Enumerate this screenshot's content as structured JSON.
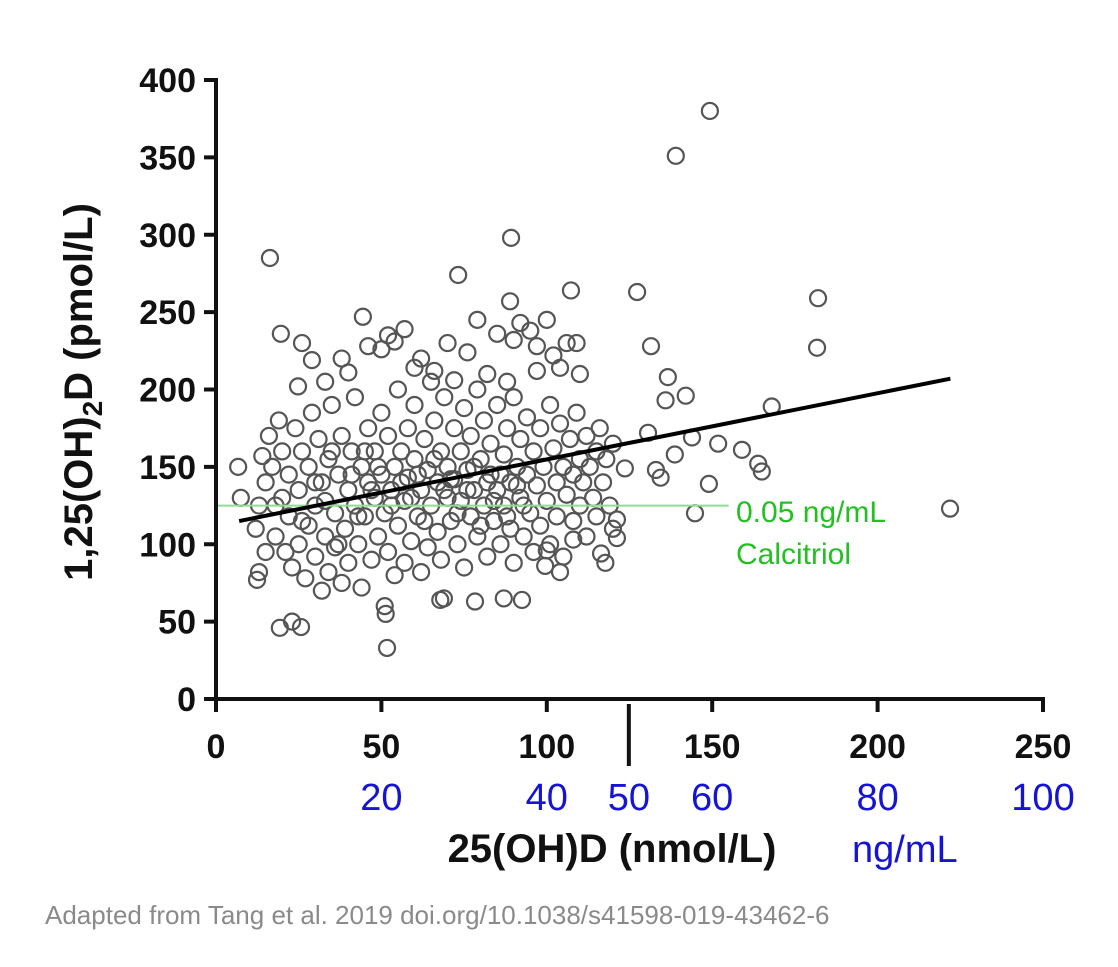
{
  "chart_data": {
    "type": "scatter",
    "title": "",
    "xlabel": "25(OH)D (nmol/L)",
    "ylabel_main": "1,25(OH)",
    "ylabel_sub": "2",
    "ylabel_rest": "D (pmol/L)",
    "xlim": [
      0,
      250
    ],
    "ylim": [
      0,
      400
    ],
    "xticks": [
      0,
      50,
      100,
      150,
      200,
      250
    ],
    "yticks": [
      0,
      50,
      100,
      150,
      200,
      250,
      300,
      350,
      400
    ],
    "grid": false,
    "secondary_x_axis": {
      "unit_label": "ng/mL",
      "ticks": [
        {
          "label": "20",
          "x_nmol": 50
        },
        {
          "label": "40",
          "x_nmol": 100
        },
        {
          "label": "50",
          "x_nmol": 124.8
        },
        {
          "label": "60",
          "x_nmol": 150
        },
        {
          "label": "80",
          "x_nmol": 200
        },
        {
          "label": "100",
          "x_nmol": 250
        }
      ],
      "color": "#1414d2"
    },
    "marker_line_x": 124.8,
    "regression_line": {
      "x": [
        7,
        222
      ],
      "y": [
        115,
        207
      ],
      "color": "#000000"
    },
    "reference_line": {
      "y": 125,
      "x": [
        0,
        155
      ],
      "color": "#90dc90",
      "label_line1": "0.05 ng/mL",
      "label_line2": "Calcitriol",
      "label_color": "#22c022"
    },
    "marker_color": "#555555",
    "points": [
      [
        16.3,
        285
      ],
      [
        19.6,
        236
      ],
      [
        26,
        230
      ],
      [
        44.4,
        247
      ],
      [
        73.2,
        274
      ],
      [
        89.2,
        298
      ],
      [
        88.9,
        257
      ],
      [
        107.3,
        264
      ],
      [
        127.3,
        263
      ],
      [
        139,
        351
      ],
      [
        149.3,
        380
      ],
      [
        182,
        259
      ],
      [
        181.7,
        227
      ],
      [
        221.9,
        123
      ],
      [
        168,
        189
      ],
      [
        159,
        161
      ],
      [
        163.9,
        152
      ],
      [
        165,
        147
      ],
      [
        151.8,
        165
      ],
      [
        149,
        139
      ],
      [
        144.8,
        120
      ],
      [
        142,
        196
      ],
      [
        136.6,
        208
      ],
      [
        131.5,
        228
      ],
      [
        135.9,
        193
      ],
      [
        133,
        148
      ],
      [
        134.4,
        143
      ],
      [
        138.7,
        158
      ],
      [
        143.9,
        169
      ],
      [
        130.6,
        172
      ],
      [
        123.6,
        149
      ],
      [
        121.2,
        116
      ],
      [
        121.2,
        104
      ],
      [
        116.4,
        94
      ],
      [
        117.7,
        88
      ],
      [
        6.7,
        150
      ],
      [
        7.5,
        130
      ],
      [
        12.4,
        77
      ],
      [
        13,
        82
      ],
      [
        19.3,
        46
      ],
      [
        23,
        50
      ],
      [
        25.7,
        46.5
      ],
      [
        51.7,
        33
      ],
      [
        51,
        60
      ],
      [
        51.3,
        55
      ],
      [
        67.8,
        64
      ],
      [
        68.9,
        65
      ],
      [
        78.3,
        63
      ],
      [
        87,
        65
      ],
      [
        92.5,
        64
      ],
      [
        99.5,
        86
      ],
      [
        104,
        82
      ],
      [
        100,
        96
      ],
      [
        108,
        103
      ],
      [
        24.8,
        202
      ],
      [
        29,
        219
      ],
      [
        33,
        205
      ],
      [
        38,
        220
      ],
      [
        40,
        211
      ],
      [
        46,
        228
      ],
      [
        50,
        226
      ],
      [
        52,
        235
      ],
      [
        54,
        231
      ],
      [
        57,
        239
      ],
      [
        60,
        214
      ],
      [
        62,
        220
      ],
      [
        66,
        212
      ],
      [
        70,
        230
      ],
      [
        72,
        206
      ],
      [
        76,
        224
      ],
      [
        79,
        245
      ],
      [
        82,
        210
      ],
      [
        85,
        236
      ],
      [
        90,
        232
      ],
      [
        92,
        243
      ],
      [
        95,
        238
      ],
      [
        97,
        228
      ],
      [
        100,
        245
      ],
      [
        102,
        222
      ],
      [
        104,
        214
      ],
      [
        106,
        230
      ],
      [
        109,
        230
      ],
      [
        110,
        210
      ],
      [
        97,
        212
      ],
      [
        88,
        205
      ],
      [
        14,
        157
      ],
      [
        15,
        140
      ],
      [
        16,
        170
      ],
      [
        18,
        125
      ],
      [
        18,
        105
      ],
      [
        19,
        180
      ],
      [
        20,
        160
      ],
      [
        21,
        95
      ],
      [
        22,
        145
      ],
      [
        22,
        118
      ],
      [
        23,
        85
      ],
      [
        24,
        175
      ],
      [
        25,
        135
      ],
      [
        25,
        100
      ],
      [
        26,
        160
      ],
      [
        27,
        78
      ],
      [
        28,
        150
      ],
      [
        28,
        112
      ],
      [
        29,
        185
      ],
      [
        30,
        125
      ],
      [
        30,
        92
      ],
      [
        31,
        168
      ],
      [
        32,
        140
      ],
      [
        32,
        70
      ],
      [
        33,
        105
      ],
      [
        34,
        155
      ],
      [
        34,
        82
      ],
      [
        35,
        190
      ],
      [
        36,
        120
      ],
      [
        36,
        98
      ],
      [
        37,
        145
      ],
      [
        38,
        170
      ],
      [
        38,
        75
      ],
      [
        39,
        110
      ],
      [
        40,
        135
      ],
      [
        40,
        88
      ],
      [
        41,
        160
      ],
      [
        42,
        125
      ],
      [
        42,
        195
      ],
      [
        43,
        100
      ],
      [
        44,
        150
      ],
      [
        44,
        72
      ],
      [
        45,
        118
      ],
      [
        46,
        175
      ],
      [
        46,
        140
      ],
      [
        47,
        90
      ],
      [
        48,
        130
      ],
      [
        48,
        160
      ],
      [
        49,
        105
      ],
      [
        50,
        185
      ],
      [
        50,
        145
      ],
      [
        51,
        120
      ],
      [
        52,
        95
      ],
      [
        52,
        170
      ],
      [
        53,
        135
      ],
      [
        54,
        80
      ],
      [
        54,
        150
      ],
      [
        55,
        200
      ],
      [
        55,
        112
      ],
      [
        56,
        160
      ],
      [
        57,
        128
      ],
      [
        57,
        88
      ],
      [
        58,
        175
      ],
      [
        58,
        143
      ],
      [
        59,
        102
      ],
      [
        60,
        190
      ],
      [
        60,
        155
      ],
      [
        61,
        118
      ],
      [
        62,
        135
      ],
      [
        62,
        82
      ],
      [
        63,
        168
      ],
      [
        64,
        148
      ],
      [
        64,
        98
      ],
      [
        65,
        205
      ],
      [
        65,
        125
      ],
      [
        66,
        180
      ],
      [
        67,
        140
      ],
      [
        67,
        108
      ],
      [
        68,
        160
      ],
      [
        68,
        90
      ],
      [
        69,
        195
      ],
      [
        70,
        130
      ],
      [
        70,
        150
      ],
      [
        71,
        115
      ],
      [
        72,
        175
      ],
      [
        72,
        142
      ],
      [
        73,
        100
      ],
      [
        74,
        160
      ],
      [
        74,
        128
      ],
      [
        75,
        188
      ],
      [
        75,
        85
      ],
      [
        76,
        148
      ],
      [
        77,
        118
      ],
      [
        77,
        170
      ],
      [
        78,
        135
      ],
      [
        79,
        200
      ],
      [
        79,
        105
      ],
      [
        80,
        155
      ],
      [
        81,
        125
      ],
      [
        81,
        180
      ],
      [
        82,
        92
      ],
      [
        83,
        145
      ],
      [
        83,
        165
      ],
      [
        84,
        115
      ],
      [
        85,
        190
      ],
      [
        85,
        135
      ],
      [
        86,
        100
      ],
      [
        87,
        158
      ],
      [
        87,
        125
      ],
      [
        88,
        175
      ],
      [
        89,
        140
      ],
      [
        89,
        110
      ],
      [
        90,
        195
      ],
      [
        90,
        88
      ],
      [
        91,
        150
      ],
      [
        92,
        130
      ],
      [
        92,
        168
      ],
      [
        93,
        105
      ],
      [
        94,
        182
      ],
      [
        94,
        145
      ],
      [
        95,
        120
      ],
      [
        96,
        160
      ],
      [
        96,
        95
      ],
      [
        97,
        138
      ],
      [
        98,
        175
      ],
      [
        98,
        112
      ],
      [
        99,
        150
      ],
      [
        100,
        128
      ],
      [
        101,
        190
      ],
      [
        101,
        100
      ],
      [
        102,
        162
      ],
      [
        103,
        140
      ],
      [
        103,
        118
      ],
      [
        104,
        178
      ],
      [
        105,
        150
      ],
      [
        105,
        92
      ],
      [
        106,
        132
      ],
      [
        107,
        168
      ],
      [
        108,
        145
      ],
      [
        108,
        115
      ],
      [
        109,
        185
      ],
      [
        110,
        155
      ],
      [
        110,
        125
      ],
      [
        111,
        140
      ],
      [
        112,
        170
      ],
      [
        112,
        105
      ],
      [
        113,
        150
      ],
      [
        114,
        130
      ],
      [
        115,
        160
      ],
      [
        115,
        118
      ],
      [
        116,
        175
      ],
      [
        117,
        140
      ],
      [
        118,
        155
      ],
      [
        119,
        125
      ],
      [
        120,
        165
      ],
      [
        120,
        110
      ],
      [
        12,
        110
      ],
      [
        13,
        125
      ],
      [
        15,
        95
      ],
      [
        17,
        150
      ],
      [
        20,
        130
      ],
      [
        26,
        115
      ],
      [
        30,
        140
      ],
      [
        33,
        128
      ],
      [
        35,
        160
      ],
      [
        37,
        100
      ],
      [
        41,
        145
      ],
      [
        43,
        118
      ],
      [
        45,
        160
      ],
      [
        47,
        135
      ],
      [
        49,
        150
      ],
      [
        53,
        125
      ],
      [
        56,
        140
      ],
      [
        59,
        130
      ],
      [
        61,
        145
      ],
      [
        63,
        115
      ],
      [
        66,
        155
      ],
      [
        69,
        135
      ],
      [
        71,
        142
      ],
      [
        73,
        120
      ],
      [
        76,
        135
      ],
      [
        78,
        150
      ],
      [
        80,
        112
      ],
      [
        82,
        140
      ],
      [
        84,
        128
      ],
      [
        86,
        145
      ],
      [
        88,
        118
      ],
      [
        91,
        138
      ],
      [
        93,
        125
      ]
    ]
  },
  "footer": "Adapted from Tang et al. 2019  doi.org/10.1038/s41598-019-43462-6"
}
